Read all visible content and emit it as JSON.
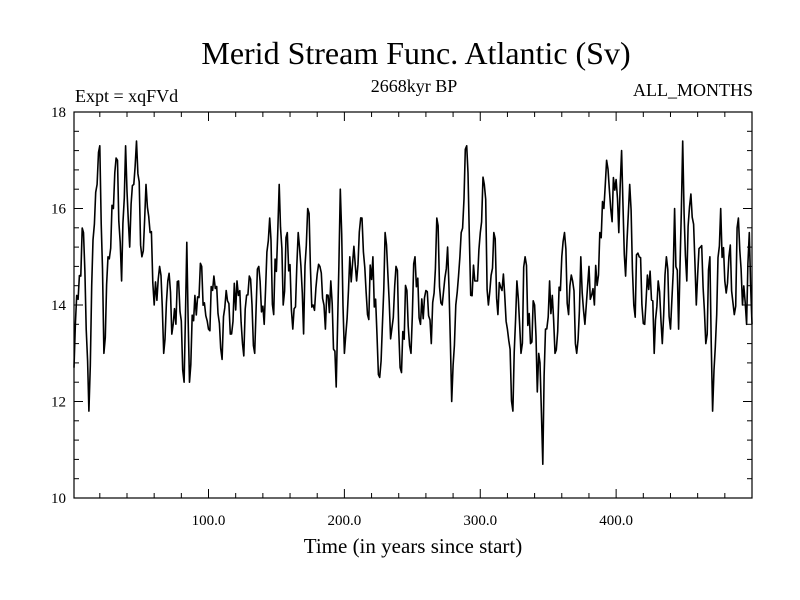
{
  "chart_data": {
    "type": "line",
    "title": "Merid Stream Func. Atlantic (Sv)",
    "subtitle_left": "Expt = xqFVd",
    "subtitle_center": "2668kyr BP",
    "subtitle_right": "ALL_MONTHS",
    "xlabel": "Time (in years since start)",
    "ylabel": "",
    "xlim": [
      1,
      500
    ],
    "ylim": [
      10,
      18
    ],
    "xticks": [
      100,
      200,
      300,
      400
    ],
    "xtick_labels": [
      "100.0",
      "200.0",
      "300.0",
      "400.0"
    ],
    "yticks": [
      10,
      12,
      14,
      16,
      18
    ],
    "ytick_labels": [
      "10",
      "12",
      "14",
      "16",
      "18"
    ],
    "grid": false,
    "series": [
      {
        "name": "Merid Stream Func. Atlantic",
        "anchors": [
          [
            1,
            12.7
          ],
          [
            3,
            14.2
          ],
          [
            6,
            14.6
          ],
          [
            8,
            15.5
          ],
          [
            10,
            13.5
          ],
          [
            12,
            11.8
          ],
          [
            14,
            14.4
          ],
          [
            18,
            16.5
          ],
          [
            20,
            17.3
          ],
          [
            23,
            13.0
          ],
          [
            26,
            15.0
          ],
          [
            30,
            16.0
          ],
          [
            33,
            17.0
          ],
          [
            36,
            14.5
          ],
          [
            39,
            17.3
          ],
          [
            42,
            15.2
          ],
          [
            45,
            16.5
          ],
          [
            47,
            17.4
          ],
          [
            51,
            15.0
          ],
          [
            54,
            16.5
          ],
          [
            57,
            15.5
          ],
          [
            60,
            14.0
          ],
          [
            64,
            14.8
          ],
          [
            67,
            13.0
          ],
          [
            70,
            14.5
          ],
          [
            74,
            13.6
          ],
          [
            78,
            14.5
          ],
          [
            82,
            12.4
          ],
          [
            84,
            15.3
          ],
          [
            86,
            12.4
          ],
          [
            90,
            14.2
          ],
          [
            95,
            14.8
          ],
          [
            100,
            13.5
          ],
          [
            104,
            14.6
          ],
          [
            109,
            13.1
          ],
          [
            113,
            14.3
          ],
          [
            117,
            13.4
          ],
          [
            121,
            14.5
          ],
          [
            125,
            13.2
          ],
          [
            130,
            14.6
          ],
          [
            134,
            13.0
          ],
          [
            137,
            14.8
          ],
          [
            141,
            13.6
          ],
          [
            145,
            15.8
          ],
          [
            148,
            13.8
          ],
          [
            152,
            16.5
          ],
          [
            155,
            14.0
          ],
          [
            158,
            15.5
          ],
          [
            162,
            13.5
          ],
          [
            166,
            15.5
          ],
          [
            170,
            13.4
          ],
          [
            173,
            16.0
          ],
          [
            177,
            14.0
          ],
          [
            182,
            14.8
          ],
          [
            186,
            13.5
          ],
          [
            190,
            14.5
          ],
          [
            194,
            12.3
          ],
          [
            197,
            16.4
          ],
          [
            200,
            13.0
          ],
          [
            204,
            15.0
          ],
          [
            209,
            14.5
          ],
          [
            213,
            15.8
          ],
          [
            217,
            13.8
          ],
          [
            221,
            15.0
          ],
          [
            226,
            12.5
          ],
          [
            230,
            15.5
          ],
          [
            234,
            13.3
          ],
          [
            238,
            14.8
          ],
          [
            242,
            12.6
          ],
          [
            246,
            14.3
          ],
          [
            249,
            13.0
          ],
          [
            252,
            15.0
          ],
          [
            256,
            13.6
          ],
          [
            260,
            14.3
          ],
          [
            264,
            13.2
          ],
          [
            268,
            15.8
          ],
          [
            272,
            14.0
          ],
          [
            276,
            15.2
          ],
          [
            279,
            12.0
          ],
          [
            282,
            14.0
          ],
          [
            285,
            15.0
          ],
          [
            288,
            16.2
          ],
          [
            290,
            17.3
          ],
          [
            293,
            14.2
          ],
          [
            296,
            14.5
          ],
          [
            300,
            15.5
          ],
          [
            303,
            16.5
          ],
          [
            306,
            14.0
          ],
          [
            310,
            15.5
          ],
          [
            313,
            13.8
          ],
          [
            316,
            14.3
          ],
          [
            320,
            13.5
          ],
          [
            324,
            11.8
          ],
          [
            327,
            14.5
          ],
          [
            330,
            13.0
          ],
          [
            333,
            15.0
          ],
          [
            337,
            13.2
          ],
          [
            340,
            14.0
          ],
          [
            342,
            12.2
          ],
          [
            344,
            12.8
          ],
          [
            346,
            10.7
          ],
          [
            348,
            13.5
          ],
          [
            351,
            14.5
          ],
          [
            355,
            13.0
          ],
          [
            359,
            14.3
          ],
          [
            362,
            15.5
          ],
          [
            365,
            13.8
          ],
          [
            368,
            14.5
          ],
          [
            371,
            13.0
          ],
          [
            374,
            15.0
          ],
          [
            377,
            13.6
          ],
          [
            380,
            14.8
          ],
          [
            384,
            14.0
          ],
          [
            388,
            15.5
          ],
          [
            391,
            16.0
          ],
          [
            393,
            17.0
          ],
          [
            396,
            16.0
          ],
          [
            400,
            16.6
          ],
          [
            402,
            15.5
          ],
          [
            404,
            17.2
          ],
          [
            407,
            14.6
          ],
          [
            410,
            16.5
          ],
          [
            413,
            14.0
          ],
          [
            417,
            15.0
          ],
          [
            421,
            13.6
          ],
          [
            425,
            14.7
          ],
          [
            428,
            13.0
          ],
          [
            431,
            14.5
          ],
          [
            434,
            13.2
          ],
          [
            437,
            15.0
          ],
          [
            440,
            13.5
          ],
          [
            443,
            16.0
          ],
          [
            446,
            13.5
          ],
          [
            449,
            17.4
          ],
          [
            452,
            14.5
          ],
          [
            455,
            16.3
          ],
          [
            459,
            14.0
          ],
          [
            462,
            15.2
          ],
          [
            466,
            13.2
          ],
          [
            469,
            15.0
          ],
          [
            471,
            11.8
          ],
          [
            474,
            13.8
          ],
          [
            477,
            16.0
          ],
          [
            480,
            14.5
          ],
          [
            483,
            15.0
          ],
          [
            487,
            13.8
          ],
          [
            490,
            15.8
          ],
          [
            493,
            14.0
          ],
          [
            496,
            13.6
          ],
          [
            498,
            15.5
          ],
          [
            500,
            13.6
          ]
        ]
      }
    ]
  }
}
